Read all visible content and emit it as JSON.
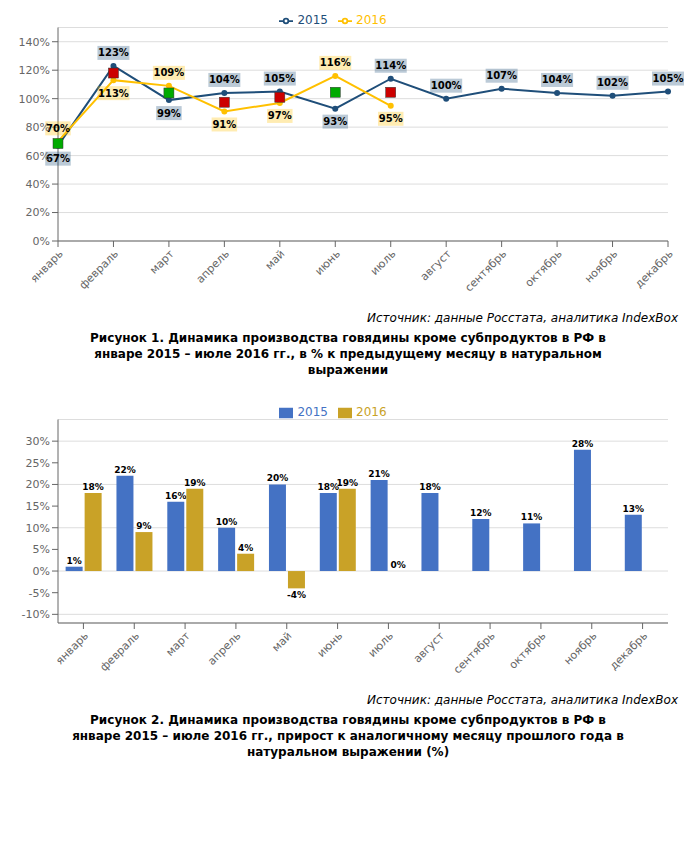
{
  "chart_data": [
    {
      "type": "line",
      "categories": [
        "январь",
        "февраль",
        "март",
        "апрель",
        "май",
        "июнь",
        "июль",
        "август",
        "сентябрь",
        "октябрь",
        "ноябрь",
        "декабрь"
      ],
      "series": [
        {
          "name": "2015",
          "color": "#1f4e79",
          "marker": "circle",
          "values": [
            67,
            123,
            99,
            104,
            105,
            93,
            114,
            100,
            107,
            104,
            102,
            105
          ],
          "value_labels": [
            "67%",
            "123%",
            "99%",
            "104%",
            "105%",
            "93%",
            "114%",
            "100%",
            "107%",
            "104%",
            "102%",
            "105%"
          ]
        },
        {
          "name": "2016",
          "color": "#ffc000",
          "marker": "circle",
          "values": [
            70,
            113,
            109,
            91,
            97,
            116,
            95,
            null,
            null,
            null,
            null,
            null
          ],
          "value_labels": [
            "70%",
            "113%",
            "109%",
            "91%",
            "97%",
            "116%",
            "95%",
            null,
            null,
            null,
            null,
            null
          ]
        },
        {
          "type": "scatter",
          "color": "#00aa00",
          "marker": "square",
          "values": [
            68.5,
            null,
            104,
            null,
            null,
            104.5,
            null,
            null,
            null,
            null,
            null,
            null
          ]
        },
        {
          "type": "scatter",
          "color": "#cc0000",
          "marker": "square",
          "values": [
            null,
            118,
            null,
            97.5,
            101,
            null,
            104.5,
            null,
            null,
            null,
            null,
            null
          ]
        }
      ],
      "ylim": [
        0,
        150
      ],
      "yticks": [
        {
          "value": 0,
          "label": "0%"
        },
        {
          "value": 20,
          "label": "20%"
        },
        {
          "value": 40,
          "label": "40%"
        },
        {
          "value": 60,
          "label": "60%"
        },
        {
          "value": 80,
          "label": "80%"
        },
        {
          "value": 100,
          "label": "100%"
        },
        {
          "value": 120,
          "label": "120%"
        },
        {
          "value": 140,
          "label": "140%"
        }
      ],
      "grid": true,
      "legend": "top",
      "data_labels": true,
      "annotations": [
        "Источник: данные Росстата, аналитика IndexBox",
        "Рисунок 1. Динамика производства говядины кроме субпродуктов в РФ в",
        "январе 2015 – июле 2016 гг., в % к предыдущему месяцу в натуральном",
        "выражении"
      ]
    },
    {
      "type": "bar",
      "categories": [
        "январь",
        "февраль",
        "март",
        "апрель",
        "май",
        "июнь",
        "июль",
        "август",
        "сентябрь",
        "октябрь",
        "ноябрь",
        "декабрь"
      ],
      "series": [
        {
          "name": "2015",
          "color": "#4472c4",
          "values": [
            1,
            22,
            16,
            10,
            20,
            18,
            21,
            18,
            12,
            11,
            28,
            13
          ],
          "value_labels": [
            "1%",
            "22%",
            "16%",
            "10%",
            "20%",
            "18%",
            "21%",
            "18%",
            "12%",
            "11%",
            "28%",
            "13%"
          ]
        },
        {
          "name": "2016",
          "color": "#c9a227",
          "values": [
            18,
            9,
            19,
            4,
            -4,
            19,
            0,
            null,
            null,
            null,
            null,
            null
          ],
          "value_labels": [
            "18%",
            "9%",
            "19%",
            "4%",
            "-4%",
            "19%",
            "0%",
            null,
            null,
            null,
            null,
            null
          ]
        }
      ],
      "ylim": [
        -12,
        35
      ],
      "yticks": [
        {
          "value": -10,
          "label": "-10%"
        },
        {
          "value": -5,
          "label": "-5%"
        },
        {
          "value": 0,
          "label": "0%"
        },
        {
          "value": 5,
          "label": "5%"
        },
        {
          "value": 10,
          "label": "10%"
        },
        {
          "value": 15,
          "label": "15%"
        },
        {
          "value": 20,
          "label": "20%"
        },
        {
          "value": 25,
          "label": "25%"
        },
        {
          "value": 30,
          "label": "30%"
        }
      ],
      "grid": true,
      "legend": "top",
      "data_labels": true,
      "annotations": [
        "Источник: данные Росстата, аналитика IndexBox",
        "Рисунок 2. Динамика производства говядины кроме субпродуктов в РФ в",
        "январе 2015 – июле 2016 гг., прирост к аналогичному месяцу прошлого года в",
        "натуральном выражении (%)"
      ]
    }
  ]
}
